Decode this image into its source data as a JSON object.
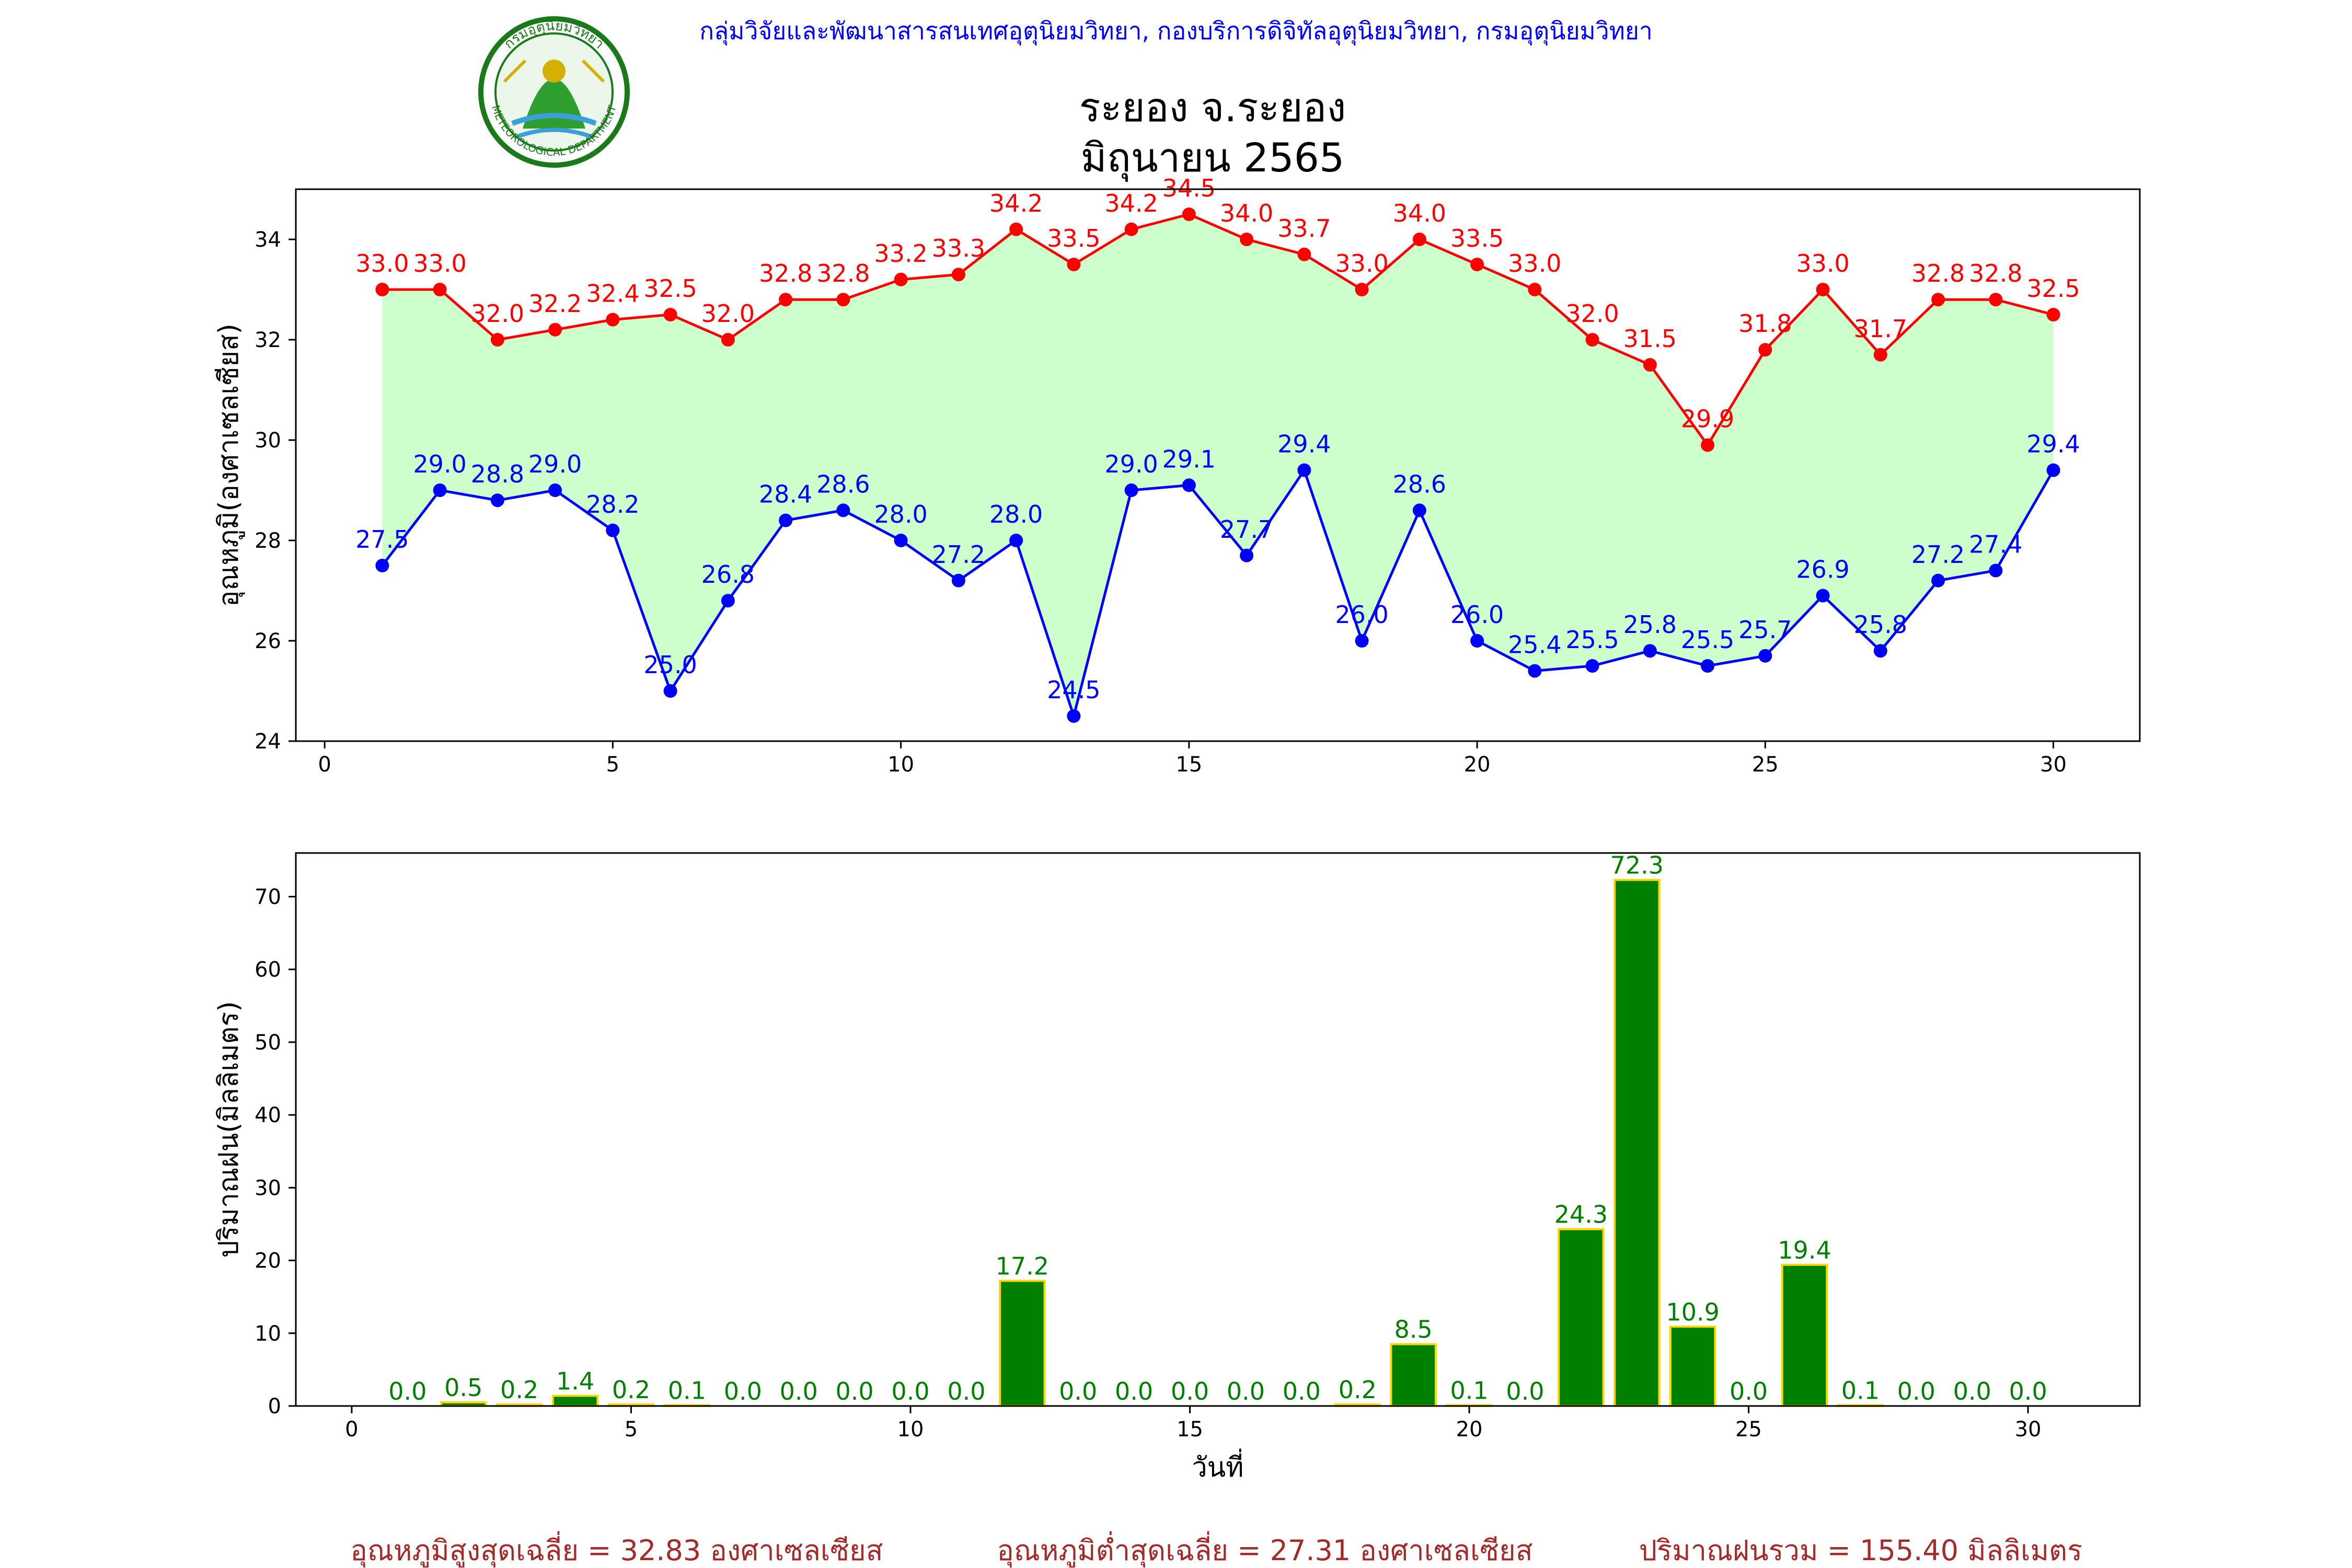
{
  "header": {
    "organization": "กลุ่มวิจัยและพัฒนาสารสนเทศอุตุนิยมวิทยา, กองบริการดิจิทัลอุตุนิยมวิทยา, กรมอุตุนิยมวิทยา",
    "logo_text_top": "กรมอุตุนิยมวิทยา",
    "logo_text_bottom": "METEOROLOGICAL DEPARTMENT",
    "title_line1": "ระยอง จ.ระยอง",
    "title_line2": "มิถุนายน 2565"
  },
  "colors": {
    "max_line": "#ff0000",
    "min_line": "#0000ff",
    "fill": "#ccffcc",
    "rain_bar": "#008000",
    "rain_edge": "#ffd700",
    "rain_label": "#008000",
    "org_text": "#0000ff",
    "footer_text": "#a52a2a"
  },
  "chart_data": [
    {
      "type": "line",
      "ylabel": "อุณหภูมิ(องศาเซลเซียส)",
      "xlabel": "",
      "xlim": [
        -0.5,
        31.5
      ],
      "ylim": [
        24,
        35
      ],
      "xticks": [
        0,
        5,
        10,
        15,
        20,
        25,
        30
      ],
      "yticks": [
        24,
        26,
        28,
        30,
        32,
        34
      ],
      "x": [
        1,
        2,
        3,
        4,
        5,
        6,
        7,
        8,
        9,
        10,
        11,
        12,
        13,
        14,
        15,
        16,
        17,
        18,
        19,
        20,
        21,
        22,
        23,
        24,
        25,
        26,
        27,
        28,
        29,
        30
      ],
      "series": [
        {
          "key": "max",
          "color": "#ff0000",
          "values": [
            33.0,
            33.0,
            32.0,
            32.2,
            32.4,
            32.5,
            32.0,
            32.8,
            32.8,
            33.2,
            33.3,
            34.2,
            33.5,
            34.2,
            34.5,
            34.0,
            33.7,
            33.0,
            34.0,
            33.5,
            33.0,
            32.0,
            31.5,
            29.9,
            31.8,
            33.0,
            31.7,
            32.8,
            32.8,
            32.5
          ]
        },
        {
          "key": "min",
          "color": "#0000ff",
          "values": [
            27.5,
            29.0,
            28.8,
            29.0,
            28.2,
            25.0,
            26.8,
            28.4,
            28.6,
            28.0,
            27.2,
            28.0,
            24.5,
            29.0,
            29.1,
            27.7,
            29.4,
            26.0,
            28.6,
            26.0,
            25.4,
            25.5,
            25.8,
            25.5,
            25.7,
            26.9,
            25.8,
            27.2,
            27.4,
            29.4
          ]
        }
      ]
    },
    {
      "type": "bar",
      "ylabel": "ปริมาณฝน(มิลลิเมตร)",
      "xlabel": "วันที่",
      "xlim": [
        -1,
        32
      ],
      "ylim": [
        0,
        76
      ],
      "xticks": [
        0,
        5,
        10,
        15,
        20,
        25,
        30
      ],
      "yticks": [
        0,
        10,
        20,
        30,
        40,
        50,
        60,
        70
      ],
      "x": [
        1,
        2,
        3,
        4,
        5,
        6,
        7,
        8,
        9,
        10,
        11,
        12,
        13,
        14,
        15,
        16,
        17,
        18,
        19,
        20,
        21,
        22,
        23,
        24,
        25,
        26,
        27,
        28,
        29,
        30
      ],
      "values": [
        0.0,
        0.5,
        0.2,
        1.4,
        0.2,
        0.1,
        0.0,
        0.0,
        0.0,
        0.0,
        0.0,
        17.2,
        0.0,
        0.0,
        0.0,
        0.0,
        0.0,
        0.2,
        8.5,
        0.1,
        0.0,
        24.3,
        72.3,
        10.9,
        0.0,
        19.4,
        0.1,
        0.0,
        0.0,
        0.0
      ]
    }
  ],
  "footer": {
    "avg_max": "อุณหภูมิสูงสุดเฉลี่ย = 32.83 องศาเซลเซียส",
    "avg_min": "อุณหภูมิต่ำสุดเฉลี่ย = 27.31 องศาเซลเซียส",
    "total_rain": "ปริมาณฝนรวม = 155.40 มิลลิเมตร"
  }
}
